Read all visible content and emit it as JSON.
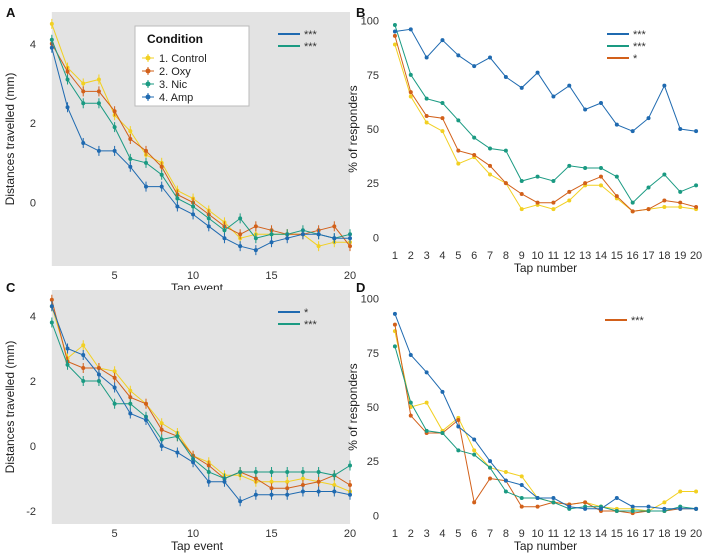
{
  "colors": {
    "control": "#f2d022",
    "oxy": "#d2601a",
    "nic": "#1a9a82",
    "amp": "#1f6ab0",
    "shade": "#e3e3e3"
  },
  "chart_data": [
    {
      "panel": "A",
      "type": "line",
      "xlabel": "Tap event",
      "ylabel": "Distances travelled (mm)",
      "xlim": [
        0.5,
        20
      ],
      "ylim": [
        -1.6,
        4.8
      ],
      "x_ticks": [
        5,
        10,
        15,
        20
      ],
      "y_ticks": [
        0,
        2,
        4
      ],
      "shaded_region": [
        1,
        20
      ],
      "legend": {
        "title": "Condition",
        "entries": [
          "1. Control",
          "2. Oxy",
          "3. Nic",
          "4. Amp"
        ],
        "placement": "top-center"
      },
      "significance": [
        {
          "color_key": "amp",
          "label": "***"
        },
        {
          "color_key": "nic",
          "label": "***"
        }
      ],
      "x": [
        1,
        2,
        3,
        4,
        5,
        6,
        7,
        8,
        9,
        10,
        11,
        12,
        13,
        14,
        15,
        16,
        17,
        18,
        19,
        20
      ],
      "series": [
        {
          "key": "control",
          "values": [
            4.5,
            3.4,
            3.0,
            3.1,
            2.2,
            1.8,
            1.2,
            1.0,
            0.3,
            0.1,
            -0.2,
            -0.5,
            -0.9,
            -0.8,
            -0.8,
            -0.8,
            -0.8,
            -1.1,
            -1.0,
            -1.0
          ]
        },
        {
          "key": "oxy",
          "values": [
            4.0,
            3.3,
            2.8,
            2.8,
            2.3,
            1.6,
            1.3,
            0.9,
            0.2,
            0.0,
            -0.3,
            -0.6,
            -0.8,
            -0.6,
            -0.7,
            -0.8,
            -0.8,
            -0.7,
            -0.6,
            -1.1
          ]
        },
        {
          "key": "nic",
          "values": [
            4.1,
            3.1,
            2.5,
            2.5,
            1.9,
            1.1,
            1.0,
            0.7,
            0.1,
            -0.1,
            -0.4,
            -0.7,
            -0.4,
            -0.9,
            -0.8,
            -0.8,
            -0.7,
            -0.8,
            -0.9,
            -0.8
          ]
        },
        {
          "key": "amp",
          "values": [
            3.9,
            2.4,
            1.5,
            1.3,
            1.3,
            0.9,
            0.4,
            0.4,
            -0.1,
            -0.3,
            -0.6,
            -0.9,
            -1.1,
            -1.2,
            -1.0,
            -0.9,
            -0.8,
            -0.8,
            -0.9,
            -0.9
          ]
        }
      ]
    },
    {
      "panel": "B",
      "type": "line",
      "xlabel": "Tap number",
      "ylabel": "% of responders",
      "xlim": [
        0.5,
        20.5
      ],
      "ylim": [
        -4,
        104
      ],
      "x_ticks": [
        1,
        2,
        3,
        4,
        5,
        6,
        7,
        8,
        9,
        10,
        11,
        12,
        13,
        14,
        15,
        16,
        17,
        18,
        19,
        20
      ],
      "y_ticks": [
        0,
        25,
        50,
        75,
        100
      ],
      "significance": [
        {
          "color_key": "amp",
          "label": "***"
        },
        {
          "color_key": "nic",
          "label": "***"
        },
        {
          "color_key": "oxy",
          "label": "*"
        }
      ],
      "x": [
        1,
        2,
        3,
        4,
        5,
        6,
        7,
        8,
        9,
        10,
        11,
        12,
        13,
        14,
        15,
        16,
        17,
        18,
        19,
        20
      ],
      "series": [
        {
          "key": "control",
          "values": [
            89,
            65,
            53,
            49,
            34,
            37,
            29,
            25,
            13,
            15,
            13,
            17,
            24,
            24,
            18,
            12,
            13,
            14,
            14,
            13
          ]
        },
        {
          "key": "oxy",
          "values": [
            93,
            67,
            56,
            55,
            40,
            38,
            33,
            25,
            20,
            16,
            16,
            21,
            25,
            28,
            19,
            12,
            13,
            17,
            16,
            14
          ]
        },
        {
          "key": "nic",
          "values": [
            98,
            75,
            64,
            62,
            54,
            46,
            41,
            40,
            26,
            28,
            26,
            33,
            32,
            32,
            28,
            16,
            23,
            29,
            21,
            24
          ]
        },
        {
          "key": "amp",
          "values": [
            95,
            96,
            83,
            91,
            84,
            79,
            83,
            74,
            69,
            76,
            65,
            70,
            59,
            62,
            52,
            49,
            55,
            70,
            50,
            49
          ]
        }
      ]
    },
    {
      "panel": "C",
      "type": "line",
      "xlabel": "Tap event",
      "ylabel": "Distances travelled (mm)",
      "xlim": [
        0.5,
        20
      ],
      "ylim": [
        -2.4,
        4.8
      ],
      "x_ticks": [
        5,
        10,
        15,
        20
      ],
      "y_ticks": [
        -2,
        0,
        2,
        4
      ],
      "shaded_region": [
        1,
        20
      ],
      "significance": [
        {
          "color_key": "amp",
          "label": "*"
        },
        {
          "color_key": "nic",
          "label": "***"
        }
      ],
      "x": [
        1,
        2,
        3,
        4,
        5,
        6,
        7,
        8,
        9,
        10,
        11,
        12,
        13,
        14,
        15,
        16,
        17,
        18,
        19,
        20
      ],
      "series": [
        {
          "key": "control",
          "values": [
            4.3,
            2.7,
            3.1,
            2.4,
            2.3,
            1.7,
            1.3,
            0.7,
            0.4,
            -0.3,
            -0.5,
            -0.9,
            -0.9,
            -1.1,
            -1.1,
            -1.1,
            -1.0,
            -1.1,
            -1.2,
            -1.4
          ]
        },
        {
          "key": "oxy",
          "values": [
            4.5,
            2.6,
            2.4,
            2.4,
            2.1,
            1.5,
            1.3,
            0.5,
            0.3,
            -0.3,
            -0.6,
            -1.0,
            -0.8,
            -1.0,
            -1.3,
            -1.3,
            -1.2,
            -1.1,
            -0.9,
            -1.2
          ]
        },
        {
          "key": "nic",
          "values": [
            3.8,
            2.5,
            2.0,
            2.0,
            1.3,
            1.3,
            0.9,
            0.2,
            0.3,
            -0.4,
            -0.8,
            -1.0,
            -0.8,
            -0.8,
            -0.8,
            -0.8,
            -0.8,
            -0.8,
            -0.9,
            -0.6
          ]
        },
        {
          "key": "amp",
          "values": [
            4.3,
            3.0,
            2.8,
            2.2,
            1.8,
            1.0,
            0.8,
            0.0,
            -0.2,
            -0.5,
            -1.1,
            -1.1,
            -1.7,
            -1.5,
            -1.5,
            -1.5,
            -1.4,
            -1.4,
            -1.4,
            -1.5
          ]
        }
      ]
    },
    {
      "panel": "D",
      "type": "line",
      "xlabel": "Tap number",
      "ylabel": "% of responders",
      "xlim": [
        0.5,
        20.5
      ],
      "ylim": [
        -4,
        104
      ],
      "x_ticks": [
        1,
        2,
        3,
        4,
        5,
        6,
        7,
        8,
        9,
        10,
        11,
        12,
        13,
        14,
        15,
        16,
        17,
        18,
        19,
        20
      ],
      "y_ticks": [
        0,
        25,
        50,
        75,
        100
      ],
      "significance": [
        {
          "color_key": "oxy",
          "label": "***"
        }
      ],
      "x": [
        1,
        2,
        3,
        4,
        5,
        6,
        7,
        8,
        9,
        10,
        11,
        12,
        13,
        14,
        15,
        16,
        17,
        18,
        19,
        20
      ],
      "series": [
        {
          "key": "control",
          "values": [
            85,
            50,
            52,
            39,
            45,
            30,
            22,
            20,
            18,
            8,
            6,
            5,
            6,
            4,
            3,
            3,
            2,
            6,
            11,
            11
          ]
        },
        {
          "key": "oxy",
          "values": [
            88,
            46,
            38,
            38,
            44,
            6,
            17,
            16,
            4,
            4,
            6,
            5,
            6,
            2,
            2,
            1,
            2,
            2,
            3,
            3
          ]
        },
        {
          "key": "nic",
          "values": [
            78,
            52,
            39,
            38,
            30,
            28,
            22,
            11,
            8,
            8,
            6,
            3,
            4,
            4,
            2,
            2,
            2,
            2,
            4,
            3
          ]
        },
        {
          "key": "amp",
          "values": [
            93,
            74,
            66,
            57,
            41,
            35,
            25,
            16,
            14,
            8,
            8,
            4,
            3,
            3,
            8,
            4,
            4,
            3,
            3,
            3
          ]
        }
      ]
    }
  ]
}
